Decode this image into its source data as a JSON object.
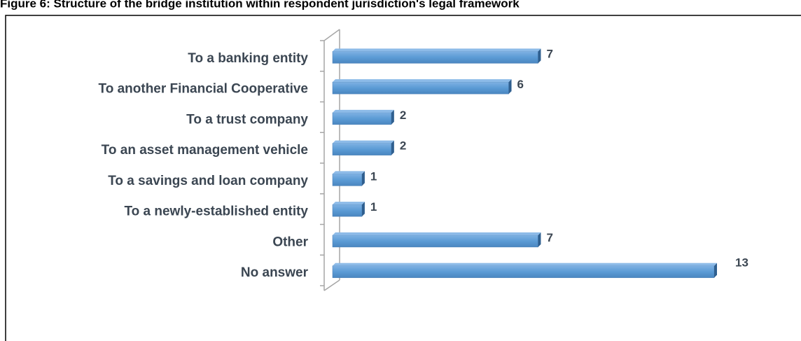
{
  "chart_data": {
    "type": "bar",
    "orientation": "horizontal",
    "title": "Figure 6: Structure of the bridge institution within respondent jurisdiction's legal framework",
    "categories": [
      "To a banking entity",
      "To another Financial Cooperative",
      "To a trust company",
      "To an asset management vehicle",
      "To a savings and loan company",
      "To a newly-established entity",
      "Other",
      "No answer"
    ],
    "values": [
      7,
      6,
      2,
      2,
      1,
      1,
      7,
      13
    ],
    "color": "#5b9bd5"
  }
}
